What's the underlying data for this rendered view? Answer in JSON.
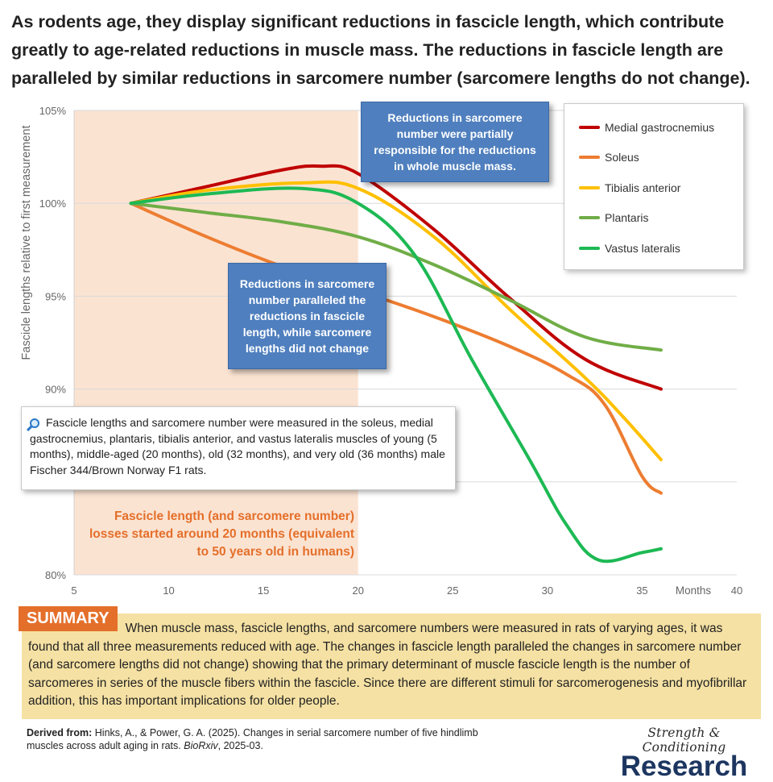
{
  "headline": "As rodents age, they display significant reductions in fascicle length, which contribute greatly to age-related reductions in muscle mass. The reductions in fascicle length are paralleled by similar reductions in sarcomere number (sarcomere lengths do not change).",
  "chart_data": {
    "type": "line",
    "xlabel": "Months",
    "ylabel": "Fascicle lengths relative to first measurement",
    "xlim": [
      5,
      40
    ],
    "ylim": [
      80,
      105
    ],
    "x_ticks": [
      "5",
      "10",
      "15",
      "20",
      "25",
      "30",
      "35",
      "40"
    ],
    "y_ticks": [
      "80%",
      "85%",
      "90%",
      "95%",
      "100%",
      "105%"
    ],
    "shaded_region_months": [
      5,
      20
    ],
    "grid": true,
    "legend_position": "top-right",
    "series": [
      {
        "name": "Medial gastrocnemius",
        "color": "#c00000",
        "x": [
          8,
          12,
          16,
          18,
          20,
          24,
          28,
          32,
          36
        ],
        "y": [
          100,
          100.9,
          101.8,
          102,
          101.6,
          98.6,
          94.9,
          91.6,
          90
        ]
      },
      {
        "name": "Soleus",
        "color": "#ed7d31",
        "x": [
          8,
          12,
          16,
          20,
          24,
          28,
          31,
          33,
          35,
          36
        ],
        "y": [
          100,
          98.2,
          96.6,
          95.3,
          93.9,
          92.3,
          90.8,
          89.2,
          85.3,
          84.4
        ]
      },
      {
        "name": "Tibialis anterior",
        "color": "#ffc000",
        "x": [
          8,
          12,
          17,
          20,
          24,
          28,
          32,
          34,
          36
        ],
        "y": [
          100,
          100.7,
          101.1,
          100.8,
          98.2,
          94.3,
          90.6,
          88.5,
          86.2
        ]
      },
      {
        "name": "Plantaris",
        "color": "#70ad47",
        "x": [
          8,
          12,
          16,
          20,
          24,
          28,
          32,
          36
        ],
        "y": [
          100,
          99.5,
          99,
          98.2,
          96.7,
          94.8,
          92.8,
          92.1
        ]
      },
      {
        "name": "Vastus lateralis",
        "color": "#1db954",
        "x": [
          8,
          12,
          17,
          20,
          23,
          26,
          29,
          31,
          32.7,
          35,
          36
        ],
        "y": [
          100,
          100.5,
          100.8,
          100,
          97.2,
          91.6,
          86.3,
          82.7,
          80.8,
          81.2,
          81.4
        ]
      }
    ]
  },
  "callouts": {
    "top": "Reductions in sarcomere number were partially responsible for the reductions in whole muscle mass.",
    "middle": "Reductions in sarcomere number paralleled the reductions in fascicle length, while sarcomere lengths did not change"
  },
  "note": {
    "icon": "magnifier-icon",
    "text": "Fascicle lengths and sarcomere number were measured in the soleus, medial gastrocnemius, plantaris, tibialis anterior, and vastus lateralis muscles of young (5 months), middle-aged (20 months), old (32 months), and very old (36 months) male Fischer 344/Brown Norway F1 rats."
  },
  "orange_note": "Fascicle length (and sarcomere number) losses started around 20 months (equivalent to 50 years old in humans)",
  "summary": {
    "badge": "SUMMARY",
    "text": "When muscle mass, fascicle lengths, and sarcomere numbers were measured in rats of varying ages, it was found that all three measurements reduced with age. The changes in fascicle length paralleled the changes in sarcomere number (and sarcomere lengths did not change) showing that the primary determinant of muscle fascicle length is the number of sarcomeres in series of the muscle fibers within the fascicle. Since there are different stimuli for sarcomerogenesis and myofibrillar addition, this has important implications for older people."
  },
  "citation": {
    "label": "Derived from:",
    "text": "Hinks, A., & Power, G. A. (2025). Changes in serial sarcomere number of five hindlimb muscles across adult aging in rats.",
    "journal": "BioRxiv",
    "date": ", 2025-03."
  },
  "brand": {
    "top": "Strength & Conditioning",
    "bottom": "Research"
  }
}
